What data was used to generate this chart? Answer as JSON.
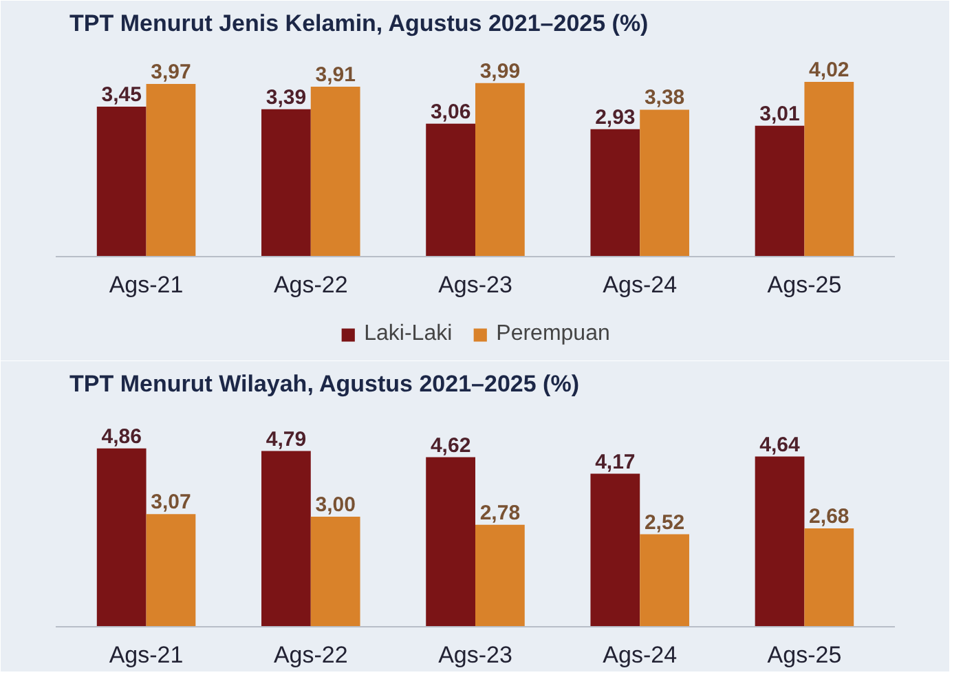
{
  "chart_data": [
    {
      "type": "bar",
      "title": "TPT Menurut Jenis Kelamin, Agustus 2021–2025 (%)",
      "categories": [
        "Ags-21",
        "Ags-22",
        "Ags-23",
        "Ags-24",
        "Ags-25"
      ],
      "series": [
        {
          "name": "Laki-Laki",
          "color": "#7b1416",
          "values": [
            3.45,
            3.39,
            3.06,
            2.93,
            3.01
          ],
          "value_labels": [
            "3,45",
            "3,39",
            "3,06",
            "2,93",
            "3,01"
          ]
        },
        {
          "name": "Perempuan",
          "color": "#d9822a",
          "values": [
            3.97,
            3.91,
            3.99,
            3.38,
            4.02
          ],
          "value_labels": [
            "3,97",
            "3,91",
            "3,99",
            "3,38",
            "4,02"
          ]
        }
      ],
      "legend": "bottom",
      "grid": false
    },
    {
      "type": "bar",
      "title": "TPT Menurut Wilayah, Agustus 2021–2025 (%)",
      "categories": [
        "Ags-21",
        "Ags-22",
        "Ags-23",
        "Ags-24",
        "Ags-25"
      ],
      "series": [
        {
          "color": "#7b1416",
          "values": [
            4.86,
            4.79,
            4.62,
            4.17,
            4.64
          ],
          "value_labels": [
            "4,86",
            "4,79",
            "4,62",
            "4,17",
            "4,64"
          ]
        },
        {
          "color": "#d9822a",
          "values": [
            3.07,
            3.0,
            2.78,
            2.52,
            2.68
          ],
          "value_labels": [
            "3,07",
            "3,00",
            "2,78",
            "2,52",
            "2,68"
          ]
        }
      ],
      "grid": false
    }
  ]
}
